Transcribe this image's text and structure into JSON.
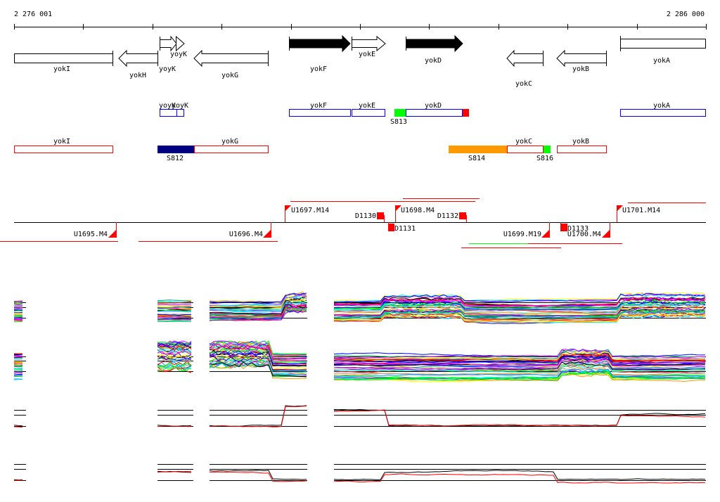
{
  "axis": {
    "start_label": "2 276 001",
    "end_label": "2 286 000"
  },
  "annotation_track": {
    "genes": [
      {
        "name": "yokI",
        "strand": "none"
      },
      {
        "name": "yokH",
        "strand": "-"
      },
      {
        "name": "yoyK",
        "strand": "+"
      },
      {
        "name": "yoyK",
        "strand": "+"
      },
      {
        "name": "yokG",
        "strand": "-"
      },
      {
        "name": "yokF",
        "strand": "+"
      },
      {
        "name": "yokE",
        "strand": "+"
      },
      {
        "name": "yokD",
        "strand": "+"
      },
      {
        "name": "yokC",
        "strand": "-"
      },
      {
        "name": "yokB",
        "strand": "-"
      },
      {
        "name": "yokA",
        "strand": "none"
      }
    ]
  },
  "forward_track": {
    "genes": [
      "yoyK",
      "yoyK",
      "yokF",
      "yokE",
      "yokD",
      "yokA"
    ],
    "segments": [
      "S813"
    ]
  },
  "reverse_track": {
    "genes": [
      "yokI",
      "yokG",
      "yokC",
      "yokB"
    ],
    "segments": [
      "S812",
      "S814",
      "S816"
    ]
  },
  "transcripts": {
    "units": [
      "U1695.M4",
      "U1696.M4",
      "U1697.M14",
      "U1698.M4",
      "U1699.M19",
      "U1700.M4",
      "U1701.M14"
    ],
    "downstream": [
      "D1130",
      "D1131",
      "D1132",
      "D1133"
    ]
  },
  "colors": {
    "forward": "#0000ff",
    "reverse": "#ff0000",
    "s812": "#000080",
    "s813": "#00ff00",
    "s814": "#ff9900",
    "s816": "#00ff00",
    "terminator": "#ff0000"
  },
  "expression_panels": {
    "rows": 4,
    "series_palette": [
      "#ff0000",
      "#00ff00",
      "#0000ff",
      "#ff00ff",
      "#00ffff",
      "#ffff00",
      "#ff9900",
      "#999999",
      "#9900ff",
      "#0099ff",
      "#00cc66",
      "#000000"
    ]
  }
}
